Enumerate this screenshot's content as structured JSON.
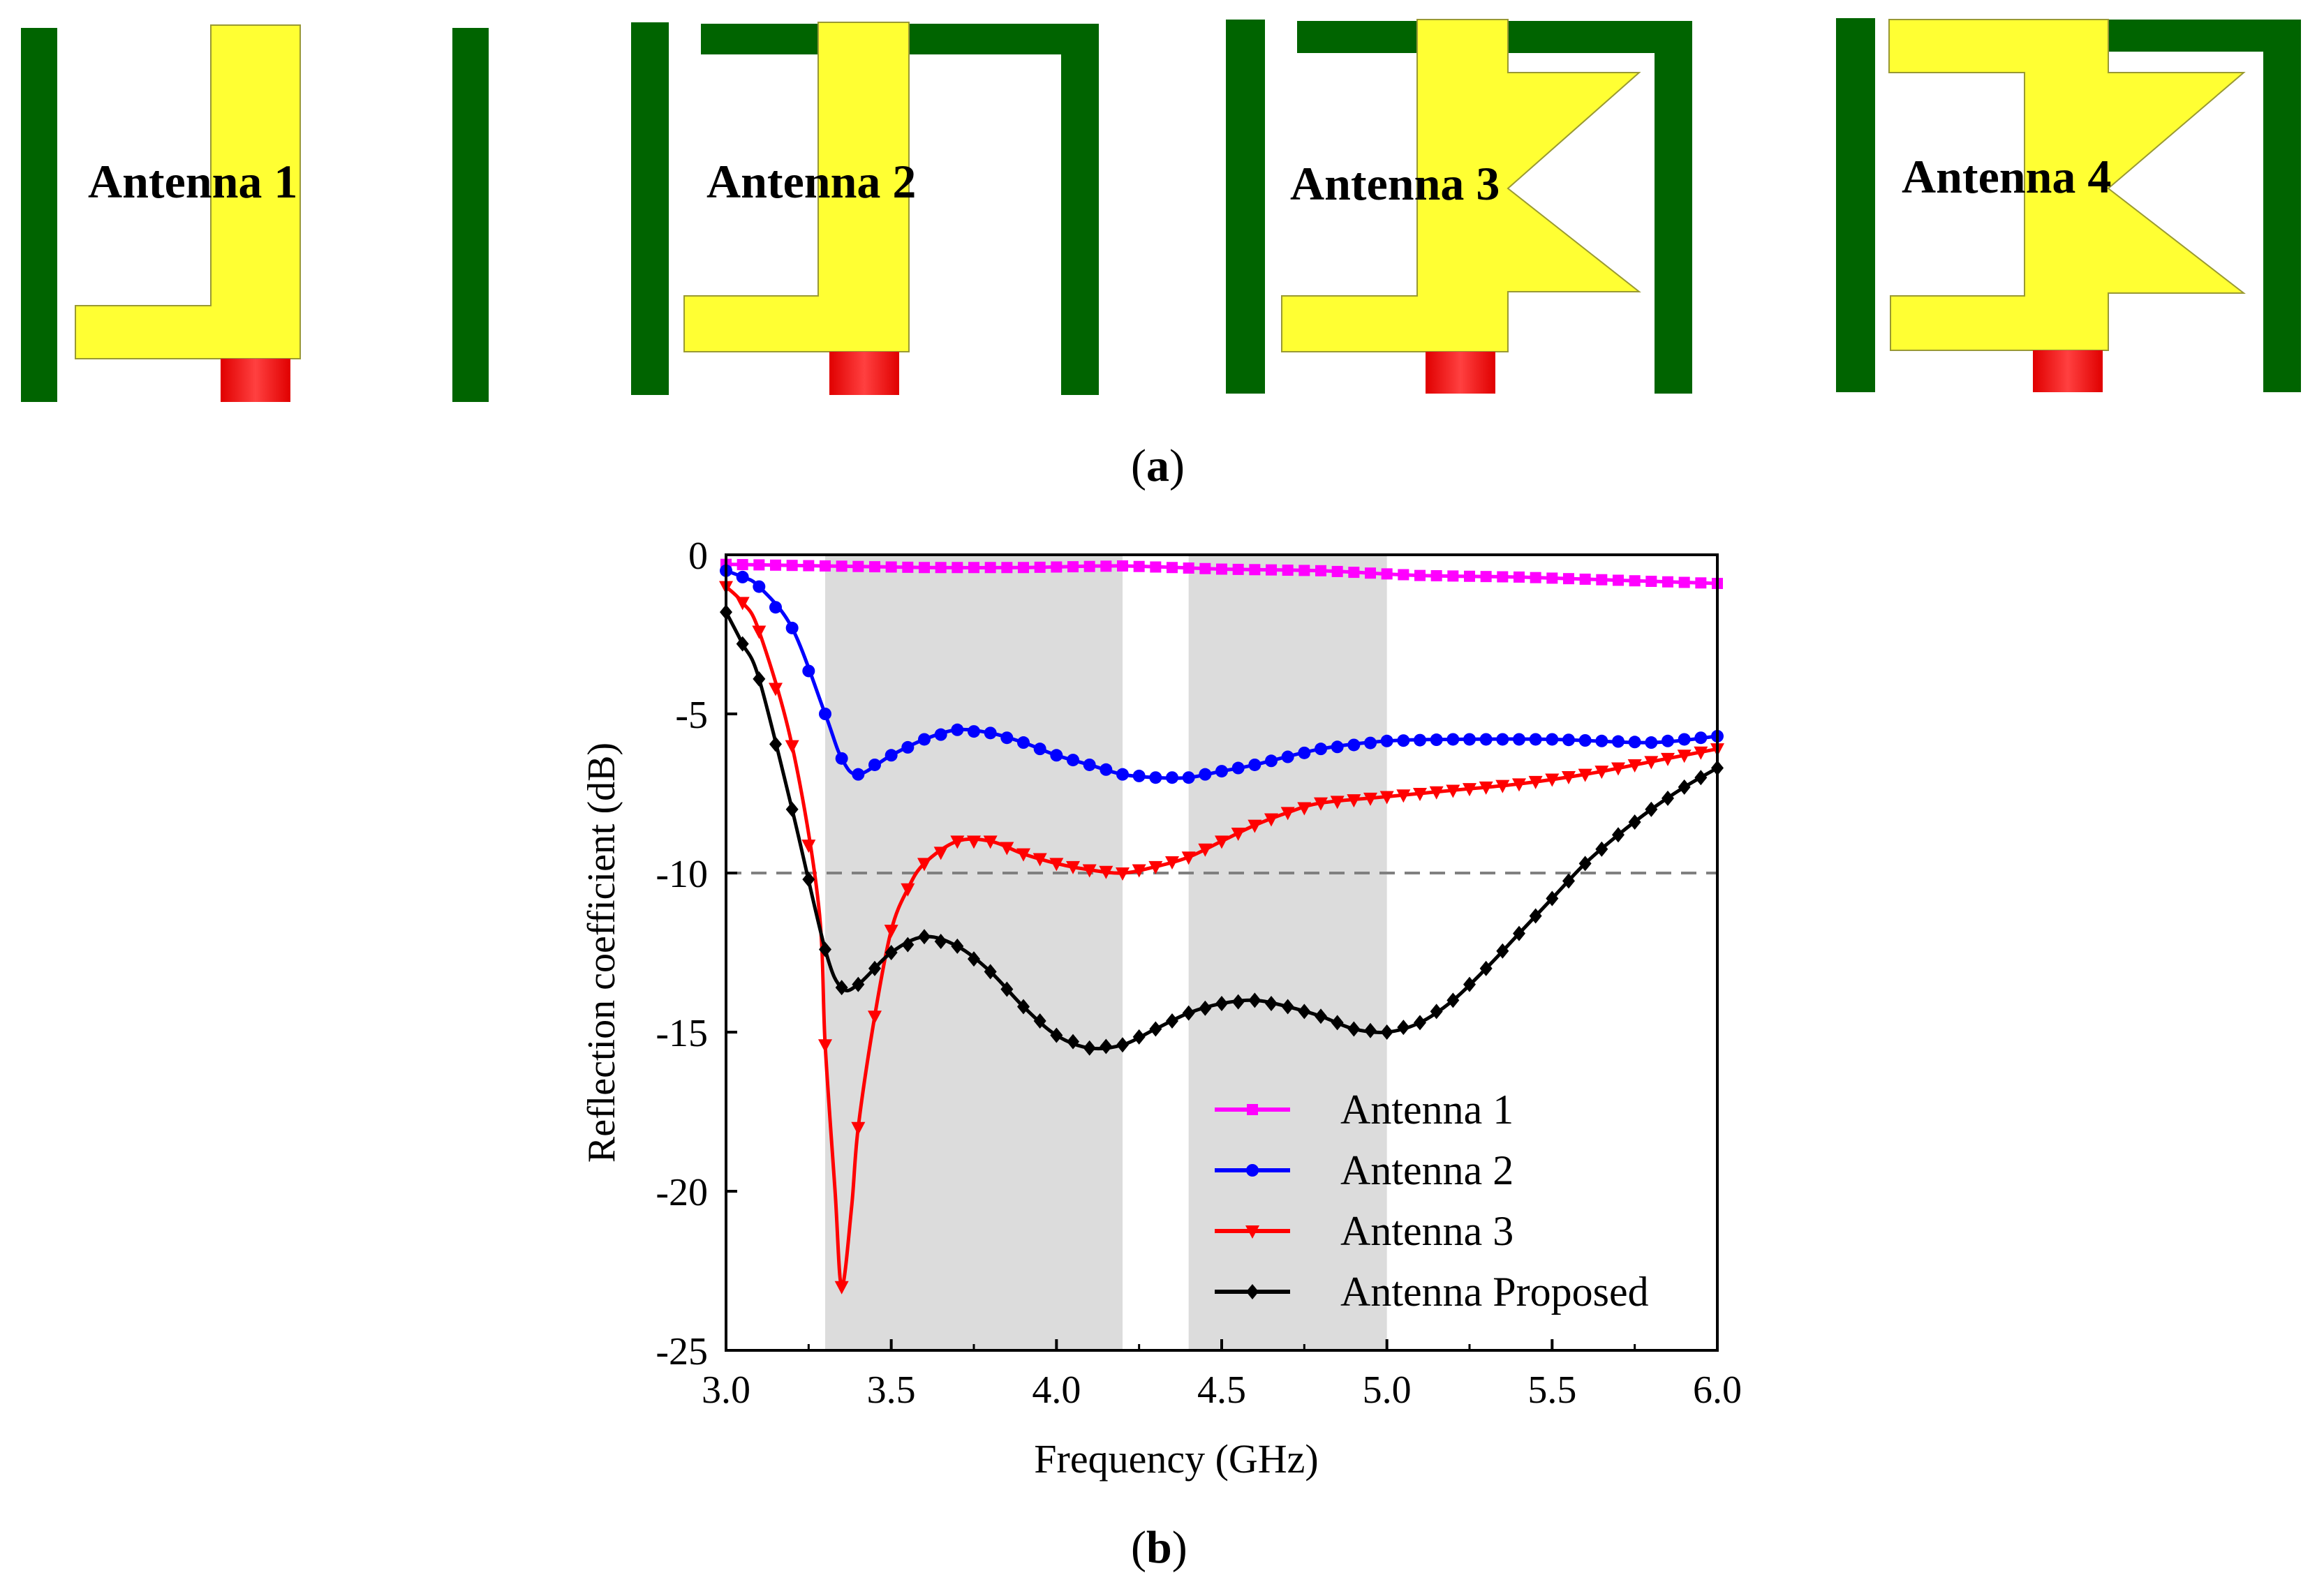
{
  "panel_a": {
    "caption_letter": "a",
    "colors": {
      "ground": "#006400",
      "patch": "#FFFF33",
      "feed": "#FF1A1A",
      "patch_edge": "#999933"
    },
    "antennas": [
      {
        "label": "Antenna 1"
      },
      {
        "label": "Antenna 2"
      },
      {
        "label": "Antenna 3"
      },
      {
        "label": "Antenna 4"
      }
    ]
  },
  "panel_b": {
    "caption_letter": "b"
  },
  "chart_data": {
    "type": "line",
    "title": "",
    "xlabel": "Frequency (GHz)",
    "ylabel": "Reflection coefficient (dB)",
    "xlim": [
      3.0,
      6.0
    ],
    "ylim": [
      -25,
      0
    ],
    "xticks": [
      "3.0",
      "3.5",
      "4.0",
      "4.5",
      "5.0",
      "5.5",
      "6.0"
    ],
    "yticks": [
      "0",
      "-5",
      "-10",
      "-15",
      "-20",
      "-25"
    ],
    "grid": false,
    "legend_position": "bottom-right",
    "reference_line": {
      "y": -10,
      "style": "dashed",
      "color": "#808080"
    },
    "shaded_bands": [
      {
        "x0": 3.3,
        "x1": 4.2
      },
      {
        "x0": 4.4,
        "x1": 5.0
      }
    ],
    "series": [
      {
        "name": "Antenna 1",
        "color": "#FF00FF",
        "marker": "square",
        "points": [
          [
            3.0,
            -0.3
          ],
          [
            3.3,
            -0.35
          ],
          [
            3.6,
            -0.4
          ],
          [
            3.9,
            -0.4
          ],
          [
            4.2,
            -0.35
          ],
          [
            4.5,
            -0.45
          ],
          [
            4.8,
            -0.5
          ],
          [
            5.1,
            -0.65
          ],
          [
            5.4,
            -0.7
          ],
          [
            5.7,
            -0.8
          ],
          [
            6.0,
            -0.9
          ]
        ]
      },
      {
        "name": "Antenna 2",
        "color": "#0000FF",
        "marker": "circle",
        "points": [
          [
            3.0,
            -0.5
          ],
          [
            3.05,
            -0.7
          ],
          [
            3.1,
            -1.0
          ],
          [
            3.2,
            -2.3
          ],
          [
            3.3,
            -5.0
          ],
          [
            3.35,
            -6.4
          ],
          [
            3.4,
            -6.9
          ],
          [
            3.5,
            -6.3
          ],
          [
            3.6,
            -5.8
          ],
          [
            3.7,
            -5.5
          ],
          [
            3.8,
            -5.6
          ],
          [
            3.9,
            -5.9
          ],
          [
            4.0,
            -6.3
          ],
          [
            4.1,
            -6.6
          ],
          [
            4.2,
            -6.9
          ],
          [
            4.3,
            -7.0
          ],
          [
            4.4,
            -7.0
          ],
          [
            4.5,
            -6.8
          ],
          [
            4.6,
            -6.6
          ],
          [
            4.8,
            -6.1
          ],
          [
            5.0,
            -5.85
          ],
          [
            5.2,
            -5.8
          ],
          [
            5.5,
            -5.8
          ],
          [
            5.8,
            -5.9
          ],
          [
            6.0,
            -5.7
          ]
        ]
      },
      {
        "name": "Antenna 3",
        "color": "#FF0000",
        "marker": "triangle-down",
        "points": [
          [
            3.0,
            -1.0
          ],
          [
            3.05,
            -1.5
          ],
          [
            3.1,
            -2.4
          ],
          [
            3.2,
            -6.0
          ],
          [
            3.28,
            -11.0
          ],
          [
            3.3,
            -15.4
          ],
          [
            3.33,
            -20.0
          ],
          [
            3.35,
            -23.0
          ],
          [
            3.38,
            -20.5
          ],
          [
            3.4,
            -18.0
          ],
          [
            3.45,
            -14.5
          ],
          [
            3.5,
            -11.8
          ],
          [
            3.55,
            -10.5
          ],
          [
            3.6,
            -9.7
          ],
          [
            3.7,
            -9.0
          ],
          [
            3.8,
            -9.0
          ],
          [
            3.9,
            -9.4
          ],
          [
            4.0,
            -9.7
          ],
          [
            4.1,
            -9.9
          ],
          [
            4.2,
            -10.0
          ],
          [
            4.3,
            -9.8
          ],
          [
            4.4,
            -9.5
          ],
          [
            4.5,
            -9.0
          ],
          [
            4.6,
            -8.5
          ],
          [
            4.7,
            -8.1
          ],
          [
            4.8,
            -7.8
          ],
          [
            5.0,
            -7.6
          ],
          [
            5.2,
            -7.4
          ],
          [
            5.4,
            -7.2
          ],
          [
            5.6,
            -6.9
          ],
          [
            5.8,
            -6.5
          ],
          [
            6.0,
            -6.1
          ]
        ]
      },
      {
        "name": "Antenna Proposed",
        "color": "#000000",
        "marker": "diamond",
        "points": [
          [
            3.0,
            -1.8
          ],
          [
            3.05,
            -2.8
          ],
          [
            3.1,
            -3.9
          ],
          [
            3.2,
            -8.0
          ],
          [
            3.3,
            -12.4
          ],
          [
            3.35,
            -13.6
          ],
          [
            3.4,
            -13.5
          ],
          [
            3.5,
            -12.5
          ],
          [
            3.6,
            -12.0
          ],
          [
            3.7,
            -12.3
          ],
          [
            3.8,
            -13.1
          ],
          [
            3.9,
            -14.2
          ],
          [
            4.0,
            -15.1
          ],
          [
            4.1,
            -15.5
          ],
          [
            4.2,
            -15.4
          ],
          [
            4.3,
            -14.9
          ],
          [
            4.4,
            -14.4
          ],
          [
            4.5,
            -14.1
          ],
          [
            4.6,
            -14.0
          ],
          [
            4.7,
            -14.2
          ],
          [
            4.8,
            -14.5
          ],
          [
            4.9,
            -14.9
          ],
          [
            5.0,
            -15.0
          ],
          [
            5.1,
            -14.7
          ],
          [
            5.2,
            -14.0
          ],
          [
            5.3,
            -13.0
          ],
          [
            5.4,
            -11.9
          ],
          [
            5.5,
            -10.8
          ],
          [
            5.6,
            -9.7
          ],
          [
            5.7,
            -8.8
          ],
          [
            5.8,
            -8.0
          ],
          [
            5.9,
            -7.3
          ],
          [
            6.0,
            -6.7
          ]
        ]
      }
    ]
  }
}
